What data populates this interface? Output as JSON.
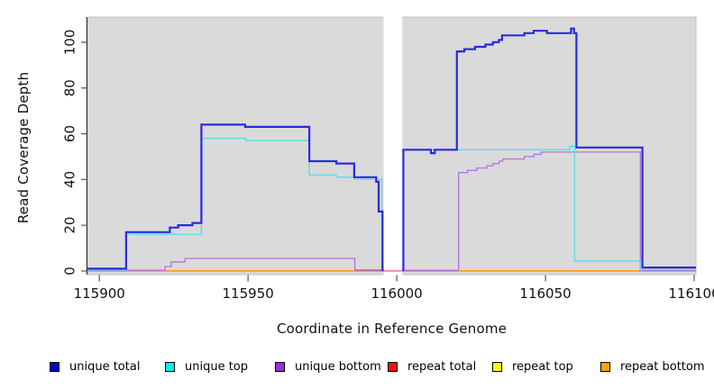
{
  "figure": {
    "xlabel": "Coordinate in Reference Genome",
    "ylabel": "Read Coverage Depth"
  },
  "chart_data": {
    "type": "line",
    "step": true,
    "title": "",
    "xlabel": "Coordinate in Reference Genome",
    "ylabel": "Read Coverage Depth",
    "xlim": [
      115896,
      116100.6
    ],
    "ylim": [
      -1.6,
      111
    ],
    "x_ticks": [
      115900,
      115950,
      116000,
      116050,
      116100
    ],
    "y_ticks": [
      0,
      20,
      40,
      60,
      80,
      100
    ],
    "panel_background": "#DADADA",
    "panel_border": "#c2c2c2",
    "gap_region": {
      "from": 115995.6,
      "to": 116001.9
    },
    "legend_position": "bottom",
    "series": [
      {
        "name": "unique total",
        "legend_color": "#0000CC",
        "line_color": "#2A2ADF",
        "line_width": 2.2,
        "segments": [
          {
            "end": 115995.6,
            "points": [
              [
                115896,
                1
              ],
              [
                115909,
                17
              ],
              [
                115923.7,
                19
              ],
              [
                115926.5,
                20
              ],
              [
                115931.3,
                21
              ],
              [
                115934.3,
                64
              ],
              [
                115949,
                63
              ],
              [
                115970.6,
                48
              ],
              [
                115979.7,
                47
              ],
              [
                115985.7,
                41
              ],
              [
                115993.1,
                39
              ],
              [
                115993.9,
                26
              ],
              [
                115995.2,
                0.3
              ]
            ]
          },
          {
            "end": 116100.6,
            "points": [
              [
                116001.9,
                0.3
              ],
              [
                116002.2,
                53
              ],
              [
                116011.5,
                51.5
              ],
              [
                116012.8,
                53
              ],
              [
                116020.2,
                96
              ],
              [
                116022.7,
                97
              ],
              [
                116026.3,
                98
              ],
              [
                116029.8,
                99
              ],
              [
                116032.3,
                100
              ],
              [
                116034.3,
                101
              ],
              [
                116035.4,
                103
              ],
              [
                116042.9,
                104
              ],
              [
                116046,
                105
              ],
              [
                116050.5,
                104
              ],
              [
                116058.6,
                106
              ],
              [
                116059.6,
                104
              ],
              [
                116060.4,
                54
              ],
              [
                116082.6,
                1.5
              ]
            ]
          }
        ]
      },
      {
        "name": "unique top",
        "legend_color": "#00EFEF",
        "line_color": "#5BDDE8",
        "line_width": 1.4,
        "segments": [
          {
            "end": 115995.4,
            "points": [
              [
                115896,
                0.5
              ],
              [
                115909,
                16
              ],
              [
                115934.3,
                58
              ],
              [
                115949.2,
                57
              ],
              [
                115970.6,
                42
              ],
              [
                115979.7,
                41
              ],
              [
                115985.7,
                40
              ],
              [
                115995,
                0.4
              ]
            ]
          },
          {
            "end": 116100.6,
            "points": [
              [
                116002.2,
                53
              ],
              [
                116058.2,
                54.5
              ],
              [
                116059.8,
                4.3
              ],
              [
                116081.8,
                0.6
              ]
            ]
          }
        ]
      },
      {
        "name": "unique bottom",
        "legend_color": "#9B30D8",
        "line_color": "#B175D8",
        "line_width": 1.3,
        "segments": [
          {
            "end": 115995.5,
            "points": [
              [
                115896,
                0.3
              ],
              [
                115922.1,
                2
              ],
              [
                115924.2,
                4
              ],
              [
                115928.8,
                5.5
              ],
              [
                115985.9,
                0.5
              ]
            ]
          },
          {
            "end": 116100.6,
            "points": [
              [
                116002,
                0.3
              ],
              [
                116020.8,
                43
              ],
              [
                116023.8,
                44
              ],
              [
                116026.9,
                45
              ],
              [
                116030.3,
                46
              ],
              [
                116032.4,
                47
              ],
              [
                116034.4,
                48
              ],
              [
                116035.6,
                49
              ],
              [
                116042.9,
                50
              ],
              [
                116046.1,
                51
              ],
              [
                116048.5,
                52
              ],
              [
                116081.9,
                0.3
              ]
            ]
          }
        ]
      },
      {
        "name": "repeat total",
        "legend_color": "#EE1111",
        "line_color": "#DB5A80",
        "line_width": 1.2,
        "segments": [
          {
            "end": 116100.6,
            "points": [
              [
                115896,
                0
              ]
            ]
          }
        ]
      },
      {
        "name": "repeat top",
        "legend_color": "#FFFF00",
        "line_color": "#ACDE96",
        "line_width": 1.3,
        "segments": [
          {
            "end": 115909,
            "points": [
              [
                115896,
                0.2
              ]
            ]
          }
        ]
      },
      {
        "name": "repeat bottom",
        "legend_color": "#FFA300",
        "line_color": "#FF9E1B",
        "line_width": 1.7,
        "segments": [
          {
            "end": 115985.9,
            "points": [
              [
                115909,
                0
              ]
            ]
          },
          {
            "end": 116082.6,
            "points": [
              [
                116020.8,
                0
              ]
            ]
          }
        ]
      }
    ]
  }
}
